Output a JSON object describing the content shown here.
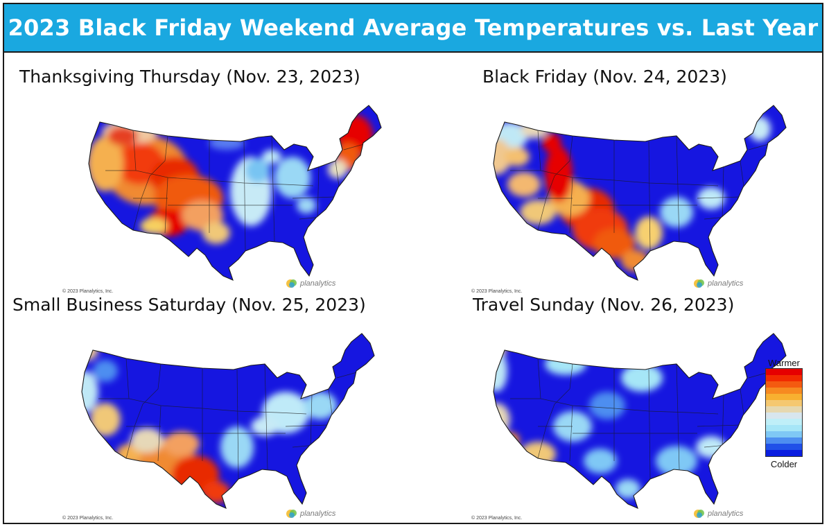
{
  "title": "2023 Black Friday Weekend Average Temperatures vs. Last Year",
  "panels": [
    {
      "title": "Thanksgiving Thursday (Nov. 23, 2023)",
      "copyright": "© 2023 Planalytics, Inc.",
      "logo": "planalytics"
    },
    {
      "title": "Black Friday (Nov. 24, 2023)",
      "copyright": "© 2023 Planalytics, Inc.",
      "logo": "planalytics"
    },
    {
      "title": "Small Business Saturday (Nov. 25, 2023)",
      "copyright": "© 2023 Planalytics, Inc.",
      "logo": "planalytics"
    },
    {
      "title": "Travel Sunday (Nov. 26, 2023)",
      "copyright": "© 2023 Planalytics, Inc.",
      "logo": "planalytics"
    }
  ],
  "legend": {
    "top_label": "Warmer",
    "bottom_label": "Colder",
    "colors": [
      "#e60000",
      "#f22a00",
      "#f45a10",
      "#f78a20",
      "#f8b030",
      "#f5c870",
      "#e6d8b0",
      "#d8e6ee",
      "#bfeff8",
      "#a6e6f7",
      "#7fc8f5",
      "#4d8ef0",
      "#2050e8",
      "#0a1ee0"
    ]
  },
  "colors": {
    "title_bar": "#1aa8e0",
    "base_colder": "#1616e0"
  }
}
